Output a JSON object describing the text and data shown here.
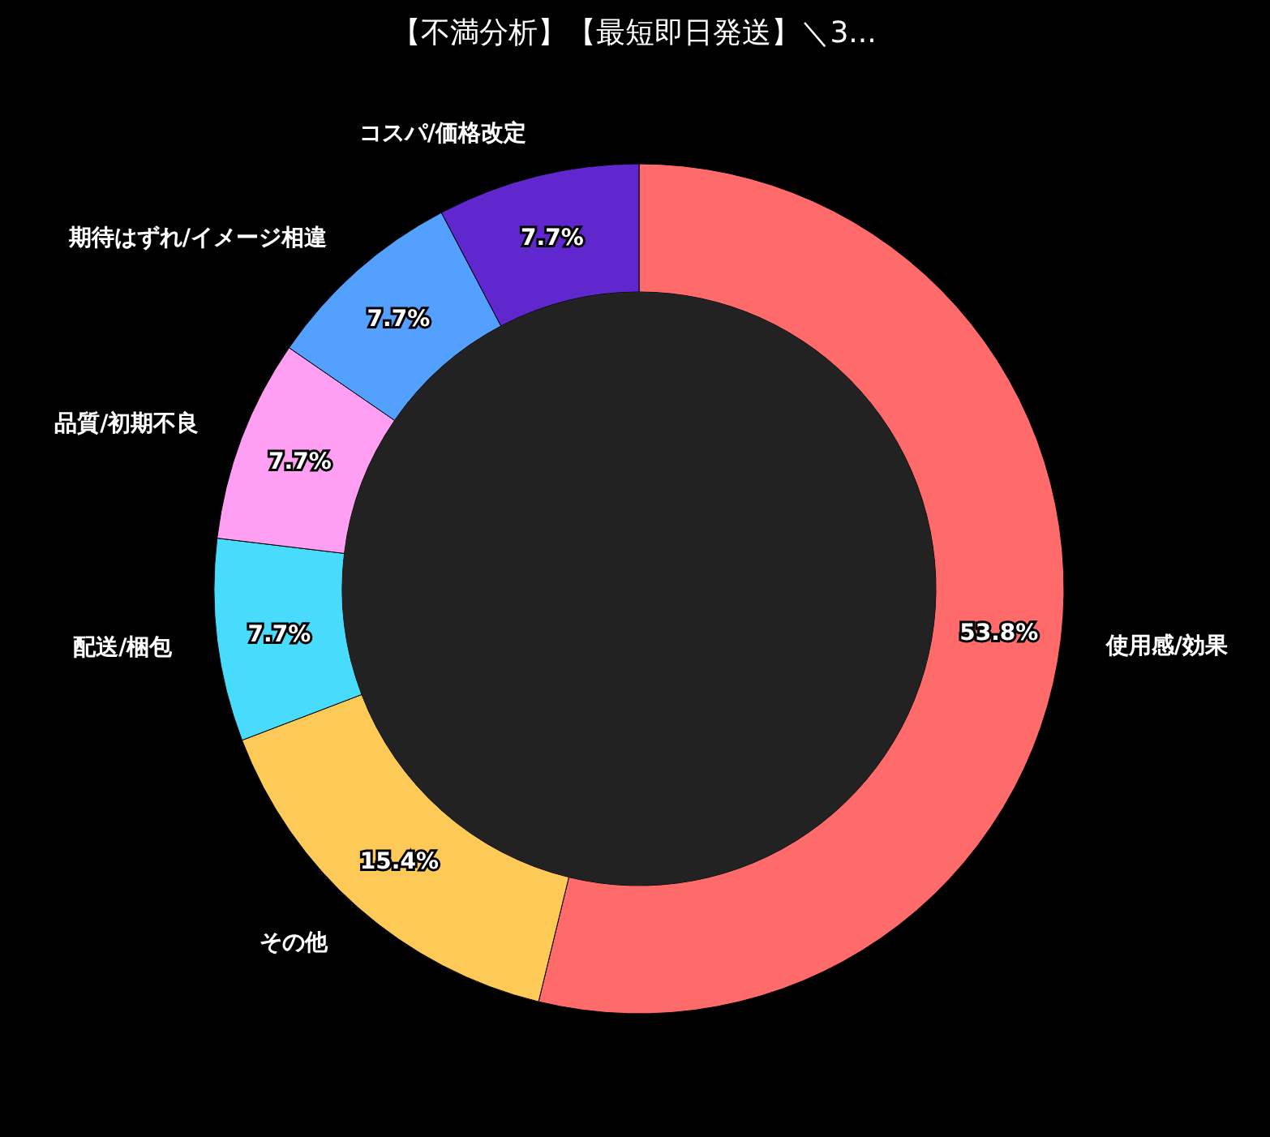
{
  "chart_data": {
    "type": "donut",
    "title": "【不満分析】【最短即日発送】＼3...",
    "categories": [
      "使用感/効果",
      "その他",
      "配送/梱包",
      "品質/初期不良",
      "期待はずれ/イメージ相違",
      "コスパ/価格改定"
    ],
    "values": [
      53.8,
      15.4,
      7.7,
      7.7,
      7.7,
      7.7
    ],
    "colors": [
      "#ff6b6b",
      "#feca57",
      "#48dbfb",
      "#ff9ff3",
      "#54a0ff",
      "#5f27cd"
    ],
    "value_labels": [
      "53.8%",
      "15.4%",
      "7.7%",
      "7.7%",
      "7.7%",
      "7.7%"
    ],
    "legend": false
  }
}
